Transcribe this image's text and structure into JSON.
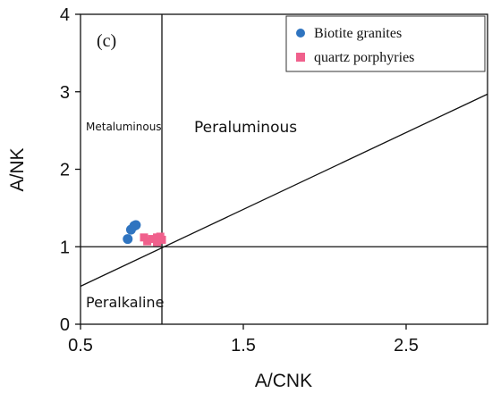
{
  "chart_data": {
    "type": "scatter",
    "panel_label": "(c)",
    "xlabel": "A/CNK",
    "ylabel": "A/NK",
    "xlim": [
      0.5,
      3.0
    ],
    "ylim": [
      0,
      4
    ],
    "x_ticks": [
      0.5,
      1.5,
      2.5
    ],
    "x_tick_labels": [
      "0.5",
      "1.5",
      "2.5"
    ],
    "y_ticks": [
      0,
      1,
      2,
      3,
      4
    ],
    "y_tick_labels": [
      "0",
      "1",
      "2",
      "3",
      "4"
    ],
    "grid": false,
    "legend_position": "top-right",
    "region_labels": {
      "metaluminous": "Metaluminous",
      "peraluminous": "Peraluminous",
      "peralkaline": "Peralkaline"
    },
    "reference_lines": {
      "vertical_x": 1.0,
      "horizontal_y": 1.0,
      "diagonal": [
        [
          0.5,
          0.49
        ],
        [
          3.0,
          2.97
        ]
      ]
    },
    "series": [
      {
        "name": "Biotite granites",
        "marker": "circle",
        "color": "#2f74c0",
        "points": [
          [
            0.79,
            1.1
          ],
          [
            0.81,
            1.22
          ],
          [
            0.83,
            1.27
          ],
          [
            0.84,
            1.28
          ]
        ]
      },
      {
        "name": "quartz porphyries",
        "marker": "square",
        "color": "#f0608c",
        "points": [
          [
            0.89,
            1.12
          ],
          [
            0.91,
            1.07
          ],
          [
            0.94,
            1.1
          ],
          [
            0.97,
            1.12
          ],
          [
            0.97,
            1.06
          ],
          [
            0.99,
            1.13
          ],
          [
            1.0,
            1.09
          ]
        ]
      }
    ]
  }
}
